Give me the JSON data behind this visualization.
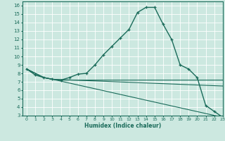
{
  "xlabel": "Humidex (Indice chaleur)",
  "background_color": "#cce8e0",
  "grid_color": "#ffffff",
  "line_color": "#1a6b5a",
  "xlim": [
    -0.5,
    23
  ],
  "ylim": [
    3,
    16.5
  ],
  "xticks": [
    0,
    1,
    2,
    3,
    4,
    5,
    6,
    7,
    8,
    9,
    10,
    11,
    12,
    13,
    14,
    15,
    16,
    17,
    18,
    19,
    20,
    21,
    22,
    23
  ],
  "yticks": [
    3,
    4,
    5,
    6,
    7,
    8,
    9,
    10,
    11,
    12,
    13,
    14,
    15,
    16
  ],
  "line1_x": [
    0,
    1,
    2,
    3,
    4,
    5,
    6,
    7,
    8,
    9,
    10,
    11,
    12,
    13,
    14,
    15,
    16,
    17,
    18,
    19,
    20,
    21,
    22,
    23
  ],
  "line1_y": [
    8.5,
    7.8,
    7.5,
    7.3,
    7.2,
    7.5,
    7.9,
    8.0,
    9.0,
    10.2,
    11.2,
    12.2,
    13.2,
    15.2,
    15.8,
    15.8,
    13.8,
    12.0,
    9.0,
    8.5,
    7.5,
    4.2,
    3.5,
    2.8
  ],
  "line2_x": [
    0,
    2,
    3,
    4,
    5,
    6,
    7,
    8,
    9,
    10,
    11,
    12,
    13,
    14,
    15,
    16,
    17,
    18,
    19,
    20,
    21,
    22,
    23
  ],
  "line2_y": [
    8.5,
    7.5,
    7.3,
    7.2,
    7.2,
    7.2,
    7.2,
    7.2,
    7.2,
    7.2,
    7.2,
    7.2,
    7.2,
    7.2,
    7.2,
    7.2,
    7.2,
    7.2,
    7.2,
    7.2,
    7.2,
    7.2,
    7.2
  ],
  "line3_x": [
    0,
    2,
    3,
    23
  ],
  "line3_y": [
    8.5,
    7.5,
    7.3,
    6.5
  ],
  "line4_x": [
    0,
    2,
    3,
    23
  ],
  "line4_y": [
    8.5,
    7.5,
    7.3,
    2.8
  ]
}
